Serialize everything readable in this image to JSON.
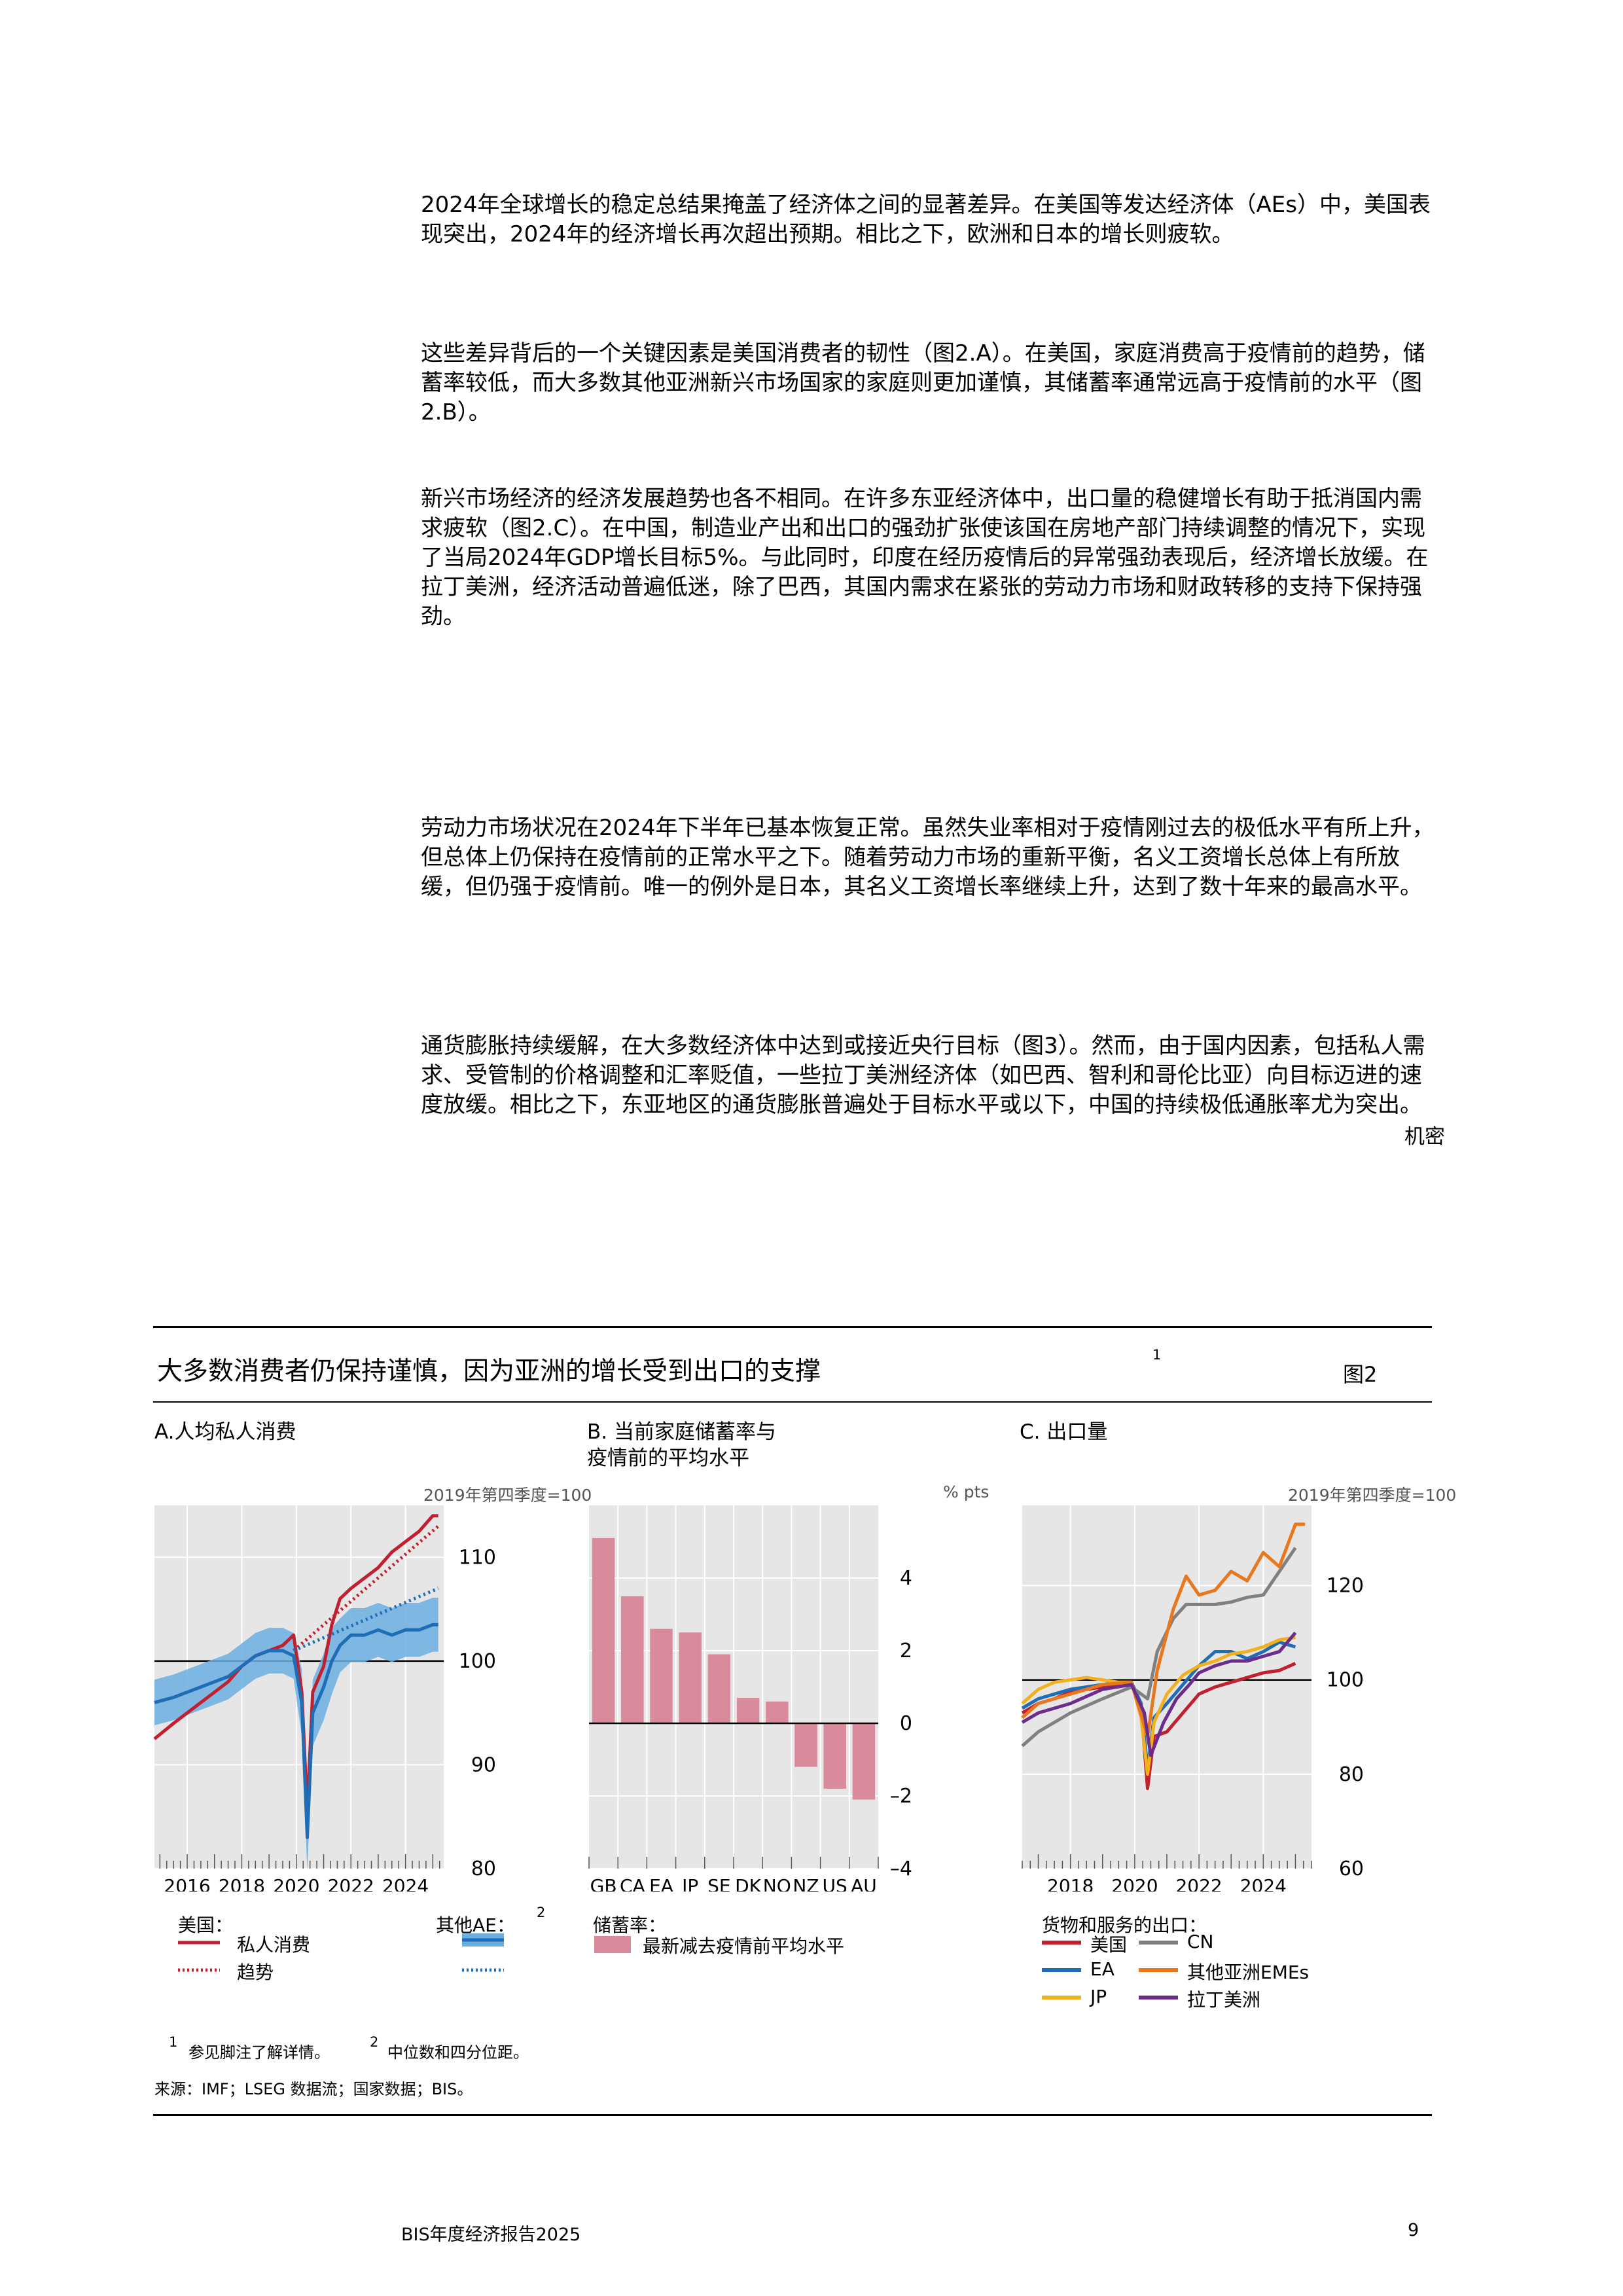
{
  "paragraphs": [
    "2024年全球增长的稳定总结果掩盖了经济体之间的显著差异。在美国等发达经济体（AEs）中，美国表现突出，2024年的经济增长再次超出预期。相比之下，欧洲和日本的增长则疲软。",
    "这些差异背后的一个关键因素是美国消费者的韧性（图2.A）。在美国，家庭消费高于疫情前的趋势，储蓄率较低，而大多数其他亚洲新兴市场国家的家庭则更加谨慎，其储蓄率通常远高于疫情前的水平（图2.B）。",
    "新兴市场经济的经济发展趋势也各不相同。在许多东亚经济体中，出口量的稳健增长有助于抵消国内需求疲软（图2.C）。在中国，制造业产出和出口的强劲扩张使该国在房地产部门持续调整的情况下，实现了当局2024年GDP增长目标5%。与此同时，印度在经历疫情后的异常强劲表现后，经济增长放缓。在拉丁美洲，经济活动普遍低迷，除了巴西，其国内需求在紧张的劳动力市场和财政转移的支持下保持强劲。",
    "劳动力市场状况在2024年下半年已基本恢复正常。虽然失业率相对于疫情刚过去的极低水平有所上升，但总体上仍保持在疫情前的正常水平之下。随着劳动力市场的重新平衡，名义工资增长总体上有所放缓，但仍强于疫情前。唯一的例外是日本，其名义工资增长率继续上升，达到了数十年来的最高水平。",
    "通货膨胀持续缓解，在大多数经济体中达到或接近央行目标（图3）。然而，由于国内因素，包括私人需求、受管制的价格调整和汇率贬值，一些拉丁美洲经济体（如巴西、智利和哥伦比亚）向目标迈进的速度放缓。相比之下，东亚地区的通货膨胀普遍处于目标水平或以下，中国的持续极低通胀率尤为突出。"
  ],
  "confidential_label": "机密",
  "figure": {
    "title": "大多数消费者仍保持谨慎，因为亚洲的增长受到出口的支撑",
    "title_footnote": "1",
    "number": "图2",
    "footnotes": {
      "n1_mark": "1",
      "n1_text": "参见脚注了解详情。",
      "n2_mark": "2",
      "n2_text": "中位数和四分位距。"
    },
    "source": "来源：IMF；LSEG 数据流；国家数据；BIS。"
  },
  "colors": {
    "red": "#c0202f",
    "blue": "#1f6db5",
    "band": "#6aaee0",
    "pink": "#d98a9c",
    "gray": "#808080",
    "orange": "#e8771e",
    "yellow": "#f2b01e",
    "purple": "#6b2d8c",
    "panel_bg": "#e6e6e6"
  },
  "chart_data": [
    {
      "type": "line",
      "panel_title": "A.人均私人消费",
      "unit": "2019年第四季度=100",
      "ylim": [
        80,
        115
      ],
      "yticks": [
        "80",
        "90",
        "100",
        "110"
      ],
      "xlim": [
        2014.8,
        2025.4
      ],
      "xticks": [
        "2016",
        "2018",
        "2020",
        "2022",
        "2024"
      ],
      "series": [
        {
          "name": "美国：私人消费",
          "color": "red",
          "style": "solid",
          "x": [
            2014.8,
            2015.5,
            2016,
            2016.5,
            2017,
            2017.5,
            2018,
            2018.5,
            2019,
            2019.5,
            2019.9,
            2020.2,
            2020.4,
            2020.6,
            2021,
            2021.3,
            2021.6,
            2022,
            2022.5,
            2023,
            2023.5,
            2024,
            2024.5,
            2025,
            2025.2
          ],
          "y": [
            92.5,
            94,
            95,
            96,
            97,
            98,
            99.5,
            100.5,
            101,
            101.5,
            102.5,
            97,
            85.5,
            97,
            99.5,
            103.5,
            106,
            107,
            108,
            109,
            110.5,
            111.5,
            112.5,
            114,
            114
          ]
        },
        {
          "name": "美国：趋势",
          "color": "red",
          "style": "dotted",
          "x": [
            2019.9,
            2025.2
          ],
          "y": [
            101,
            113
          ]
        },
        {
          "name": "其他AE：私人消费",
          "color": "blue",
          "style": "solid",
          "x": [
            2014.8,
            2015.5,
            2016,
            2016.5,
            2017,
            2017.5,
            2018,
            2018.5,
            2019,
            2019.5,
            2019.9,
            2020.2,
            2020.4,
            2020.6,
            2021,
            2021.3,
            2021.6,
            2022,
            2022.5,
            2023,
            2023.5,
            2024,
            2024.5,
            2025,
            2025.2
          ],
          "y": [
            96,
            96.5,
            97,
            97.5,
            98,
            98.5,
            99.5,
            100.5,
            101,
            101,
            100.5,
            96,
            83,
            95,
            97.5,
            100,
            101.5,
            102.5,
            102.5,
            103,
            102.5,
            103,
            103,
            103.5,
            103.5
          ]
        },
        {
          "name": "其他AE：趋势",
          "color": "blue",
          "style": "dotted",
          "x": [
            2019.9,
            2025.2
          ],
          "y": [
            101,
            107
          ]
        }
      ],
      "legend": {
        "us_header": "美国：",
        "us_solid": "私人消费",
        "us_dotted": "趋势",
        "ae_header": "其他AE：",
        "ae_footnote": "2"
      }
    },
    {
      "type": "bar",
      "panel_title_line1": "B. 当前家庭储蓄率与",
      "panel_title_line2": "疫情前的平均水平",
      "unit": "% pts",
      "ylim": [
        -4,
        6
      ],
      "yticks": [
        "–4",
        "–2",
        "0",
        "2",
        "4"
      ],
      "categories": [
        "GB",
        "CA",
        "EA",
        "JP",
        "SE",
        "DK",
        "NO",
        "NZ",
        "US",
        "AU"
      ],
      "values": [
        5.1,
        3.5,
        2.6,
        2.5,
        1.9,
        0.7,
        0.6,
        -1.2,
        -1.8,
        -2.1
      ],
      "legend": {
        "header": "储蓄率：",
        "label": "最新减去疫情前平均水平"
      }
    },
    {
      "type": "line",
      "panel_title": "C. 出口量",
      "unit": "2019年第四季度=100",
      "ylim": [
        60,
        137
      ],
      "yticks": [
        "60",
        "80",
        "100",
        "120"
      ],
      "xlim": [
        2016.5,
        2025.5
      ],
      "xticks": [
        "2018",
        "2020",
        "2022",
        "2024"
      ],
      "series": [
        {
          "name": "美国",
          "color": "red",
          "x": [
            2016.5,
            2017,
            2017.5,
            2018,
            2018.5,
            2019,
            2019.5,
            2019.9,
            2020.2,
            2020.4,
            2020.6,
            2021,
            2021.5,
            2022,
            2022.5,
            2023,
            2023.5,
            2024,
            2024.5,
            2025
          ],
          "y": [
            93,
            95,
            96,
            97.5,
            98,
            98.5,
            99,
            99,
            94,
            77,
            88,
            89,
            93,
            97,
            98.5,
            99.5,
            100.5,
            101.5,
            102,
            103.5
          ]
        },
        {
          "name": "EA",
          "color": "blue",
          "x": [
            2016.5,
            2017,
            2017.5,
            2018,
            2018.5,
            2019,
            2019.5,
            2019.9,
            2020.2,
            2020.4,
            2020.6,
            2021,
            2021.5,
            2022,
            2022.5,
            2023,
            2023.5,
            2024,
            2024.5,
            2025
          ],
          "y": [
            94,
            96,
            97,
            98,
            98.5,
            99,
            99.5,
            99.5,
            95,
            81,
            92,
            95,
            99,
            103,
            106,
            106,
            104.5,
            106,
            108,
            107
          ]
        },
        {
          "name": "JP",
          "color": "yellow",
          "x": [
            2016.5,
            2017,
            2017.5,
            2018,
            2018.5,
            2019,
            2019.5,
            2019.9,
            2020.2,
            2020.4,
            2020.6,
            2021,
            2021.5,
            2022,
            2022.5,
            2023,
            2023.5,
            2024,
            2024.5,
            2025
          ],
          "y": [
            95,
            98,
            99.5,
            100,
            100.5,
            100,
            99.5,
            99.5,
            92,
            80,
            91,
            97,
            101,
            103,
            104,
            105.5,
            106,
            107,
            108.5,
            109
          ]
        },
        {
          "name": "CN",
          "color": "gray",
          "x": [
            2016.5,
            2017,
            2018,
            2019,
            2019.9,
            2020.4,
            2020.7,
            2021.2,
            2021.6,
            2022,
            2022.5,
            2023,
            2023.5,
            2024,
            2024.5,
            2025
          ],
          "y": [
            86,
            89,
            93,
            96,
            98.5,
            96,
            106,
            113,
            116,
            116,
            116,
            116.5,
            117.5,
            118,
            123,
            128
          ]
        },
        {
          "name": "其他亚洲EMEs",
          "color": "orange",
          "x": [
            2016.5,
            2017,
            2018,
            2019,
            2019.9,
            2020.4,
            2020.7,
            2021.2,
            2021.6,
            2022,
            2022.5,
            2023,
            2023.5,
            2024,
            2024.5,
            2025,
            2025.3
          ],
          "y": [
            92,
            95,
            97,
            99,
            99.5,
            88,
            102,
            115,
            122,
            118,
            119,
            123,
            121,
            127,
            124,
            133,
            133
          ]
        },
        {
          "name": "拉丁美洲",
          "color": "purple",
          "x": [
            2016.5,
            2017,
            2018,
            2019,
            2019.9,
            2020.3,
            2020.5,
            2020.9,
            2021.3,
            2021.7,
            2022,
            2022.5,
            2023,
            2023.5,
            2024,
            2024.5,
            2025
          ],
          "y": [
            91,
            93,
            95,
            98,
            99,
            93,
            84,
            91,
            96,
            99,
            101.5,
            103,
            104,
            104,
            105,
            106,
            110
          ]
        }
      ],
      "legend": {
        "header": "货物和服务的出口：",
        "us": "美国",
        "cn": "CN",
        "ea": "EA",
        "other_asia": "其他亚洲EMEs",
        "jp": "JP",
        "latam": "拉丁美洲"
      }
    }
  ],
  "footer": {
    "report": "BIS年度经济报告2025",
    "page": "9"
  }
}
